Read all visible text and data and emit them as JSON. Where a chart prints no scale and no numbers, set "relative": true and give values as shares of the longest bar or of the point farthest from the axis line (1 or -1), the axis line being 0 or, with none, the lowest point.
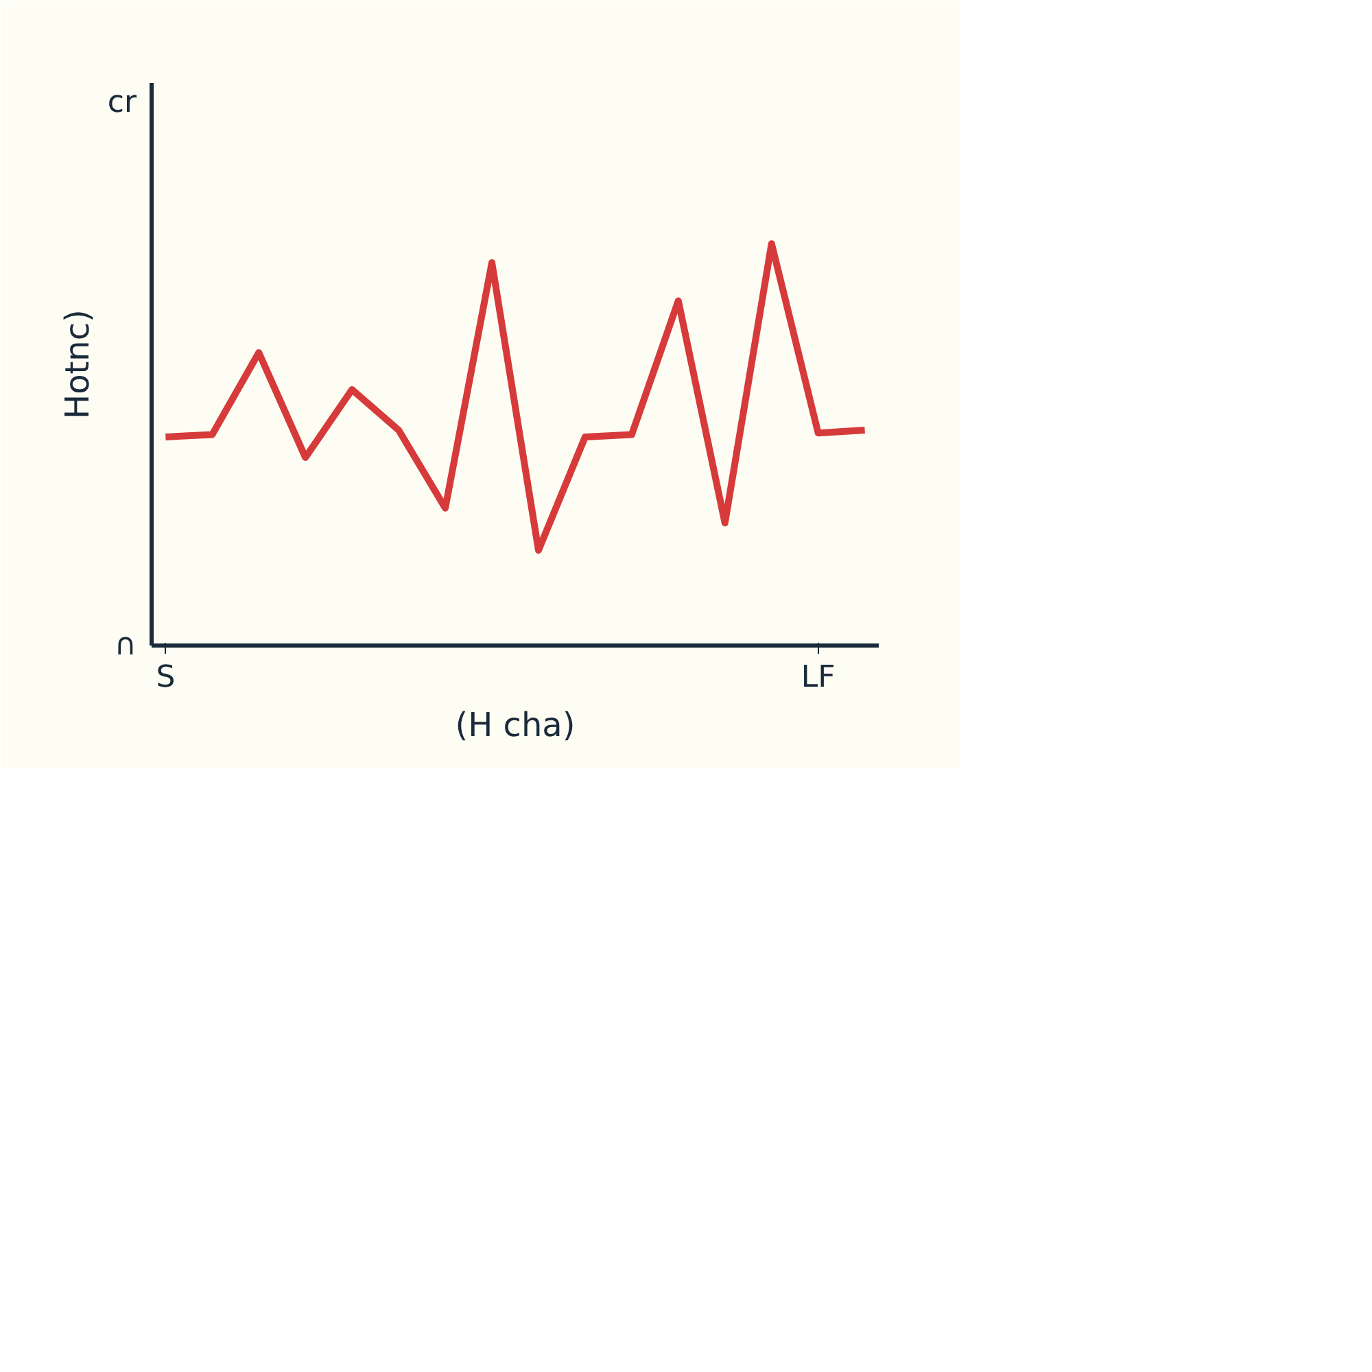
{
  "chart_data": {
    "type": "line",
    "relative": true,
    "xlabel": "(H cha)",
    "ylabel": "Hotnc)",
    "categories": [
      "S",
      null,
      null,
      null,
      null,
      null,
      null,
      null,
      null,
      null,
      null,
      null,
      null,
      null,
      "LF",
      null
    ],
    "series": [
      {
        "color": "#d63a3a",
        "values": [
          0.519,
          0.525,
          0.729,
          0.468,
          0.637,
          0.536,
          0.342,
          0.953,
          0.237,
          0.519,
          0.525,
          0.858,
          0.305,
          1,
          0.529,
          0.536
        ]
      }
    ],
    "annotations": [
      "∩",
      "cr"
    ],
    "marker": "none",
    "line_style": "solid"
  }
}
